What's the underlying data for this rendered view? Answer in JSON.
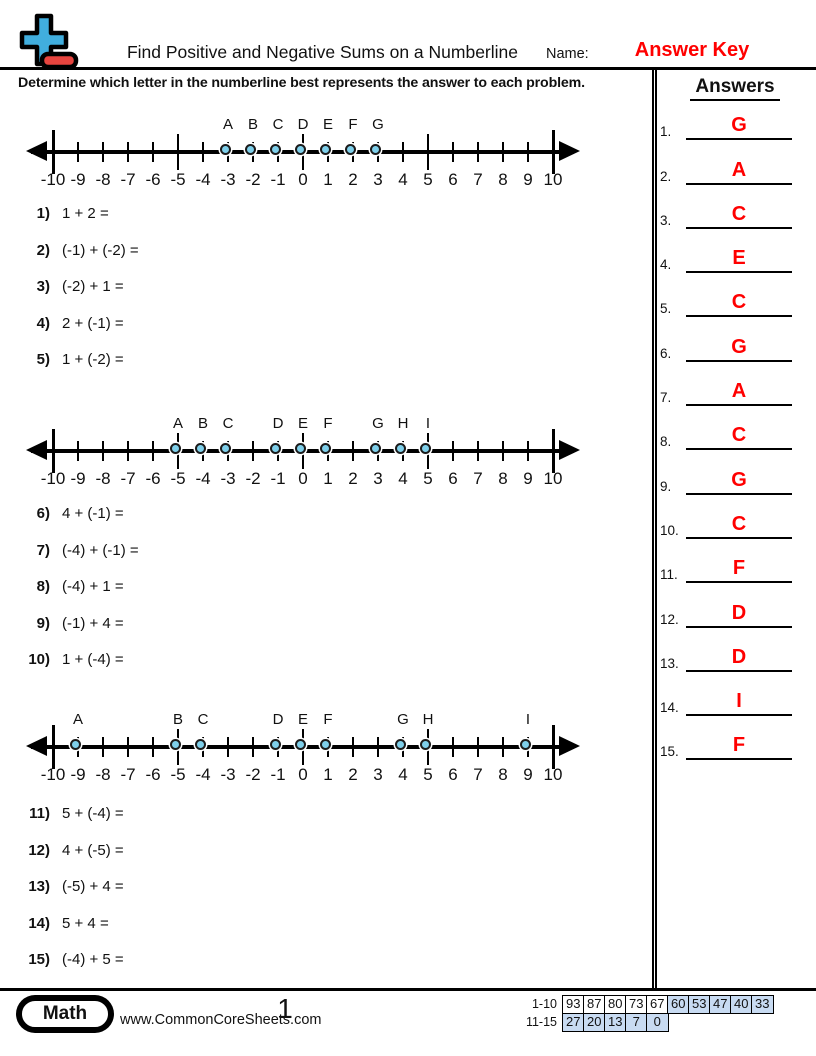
{
  "header": {
    "title": "Find Positive and Negative Sums on a Numberline",
    "name_label": "Name:",
    "answer_key": "Answer Key",
    "instruction": "Determine which letter in the numberline best represents the answer to each problem."
  },
  "answers_panel": {
    "title": "Answers",
    "items": [
      {
        "num": "1.",
        "letter": "G"
      },
      {
        "num": "2.",
        "letter": "A"
      },
      {
        "num": "3.",
        "letter": "C"
      },
      {
        "num": "4.",
        "letter": "E"
      },
      {
        "num": "5.",
        "letter": "C"
      },
      {
        "num": "6.",
        "letter": "G"
      },
      {
        "num": "7.",
        "letter": "A"
      },
      {
        "num": "8.",
        "letter": "C"
      },
      {
        "num": "9.",
        "letter": "G"
      },
      {
        "num": "10.",
        "letter": "C"
      },
      {
        "num": "11.",
        "letter": "F"
      },
      {
        "num": "12.",
        "letter": "D"
      },
      {
        "num": "13.",
        "letter": "D"
      },
      {
        "num": "14.",
        "letter": "I"
      },
      {
        "num": "15.",
        "letter": "F"
      }
    ]
  },
  "numberlines": {
    "axis": {
      "tick_labels": [
        "-10",
        "-9",
        "-8",
        "-7",
        "-6",
        "-5",
        "-4",
        "-3",
        "-2",
        "-1",
        "0",
        "1",
        "2",
        "3",
        "4",
        "5",
        "6",
        "7",
        "8",
        "9",
        "10"
      ]
    },
    "lines": [
      {
        "points": [
          {
            "letter": "A",
            "value": -3
          },
          {
            "letter": "B",
            "value": -2
          },
          {
            "letter": "C",
            "value": -1
          },
          {
            "letter": "D",
            "value": 0
          },
          {
            "letter": "E",
            "value": 1
          },
          {
            "letter": "F",
            "value": 2
          },
          {
            "letter": "G",
            "value": 3
          }
        ]
      },
      {
        "points": [
          {
            "letter": "A",
            "value": -5
          },
          {
            "letter": "B",
            "value": -4
          },
          {
            "letter": "C",
            "value": -3
          },
          {
            "letter": "D",
            "value": -1
          },
          {
            "letter": "E",
            "value": 0
          },
          {
            "letter": "F",
            "value": 1
          },
          {
            "letter": "G",
            "value": 3
          },
          {
            "letter": "H",
            "value": 4
          },
          {
            "letter": "I",
            "value": 5
          }
        ]
      },
      {
        "points": [
          {
            "letter": "A",
            "value": -9
          },
          {
            "letter": "B",
            "value": -5
          },
          {
            "letter": "C",
            "value": -4
          },
          {
            "letter": "D",
            "value": -1
          },
          {
            "letter": "E",
            "value": 0
          },
          {
            "letter": "F",
            "value": 1
          },
          {
            "letter": "G",
            "value": 4
          },
          {
            "letter": "H",
            "value": 5
          },
          {
            "letter": "I",
            "value": 9
          }
        ]
      }
    ]
  },
  "problem_groups": [
    {
      "items": [
        {
          "num": "1)",
          "expr": "1 + 2 ="
        },
        {
          "num": "2)",
          "expr": "(-1) + (-2) ="
        },
        {
          "num": "3)",
          "expr": "(-2) + 1 ="
        },
        {
          "num": "4)",
          "expr": "2 + (-1) ="
        },
        {
          "num": "5)",
          "expr": "1 + (-2) ="
        }
      ]
    },
    {
      "items": [
        {
          "num": "6)",
          "expr": "4 + (-1) ="
        },
        {
          "num": "7)",
          "expr": "(-4) + (-1) ="
        },
        {
          "num": "8)",
          "expr": "(-4) + 1 ="
        },
        {
          "num": "9)",
          "expr": "(-1) + 4 ="
        },
        {
          "num": "10)",
          "expr": "1 + (-4) ="
        }
      ]
    },
    {
      "items": [
        {
          "num": "11)",
          "expr": "5 + (-4) ="
        },
        {
          "num": "12)",
          "expr": "4 + (-5) ="
        },
        {
          "num": "13)",
          "expr": "(-5) + 4 ="
        },
        {
          "num": "14)",
          "expr": "5 + 4 ="
        },
        {
          "num": "15)",
          "expr": "(-4) + 5 ="
        }
      ]
    }
  ],
  "footer": {
    "subject_badge": "Math",
    "website": "www.CommonCoreSheets.com",
    "page_number": "1",
    "grading_table": {
      "rows": [
        {
          "label": "1-10",
          "cells": [
            {
              "value": "93",
              "highlighted": false
            },
            {
              "value": "87",
              "highlighted": false
            },
            {
              "value": "80",
              "highlighted": false
            },
            {
              "value": "73",
              "highlighted": false
            },
            {
              "value": "67",
              "highlighted": false
            },
            {
              "value": "60",
              "highlighted": true
            },
            {
              "value": "53",
              "highlighted": true
            },
            {
              "value": "47",
              "highlighted": true
            },
            {
              "value": "40",
              "highlighted": true
            },
            {
              "value": "33",
              "highlighted": true
            }
          ]
        },
        {
          "label": "11-15",
          "cells": [
            {
              "value": "27",
              "highlighted": true
            },
            {
              "value": "20",
              "highlighted": true
            },
            {
              "value": "13",
              "highlighted": true
            },
            {
              "value": "7",
              "highlighted": true
            },
            {
              "value": "0",
              "highlighted": true
            }
          ]
        }
      ]
    }
  },
  "colors": {
    "answer_red": "#ff0000",
    "dot_fill": "#7ecfea",
    "cell_blue": "#c8dbf2",
    "icon_blue": "#41aede",
    "icon_red": "#e8453f"
  }
}
